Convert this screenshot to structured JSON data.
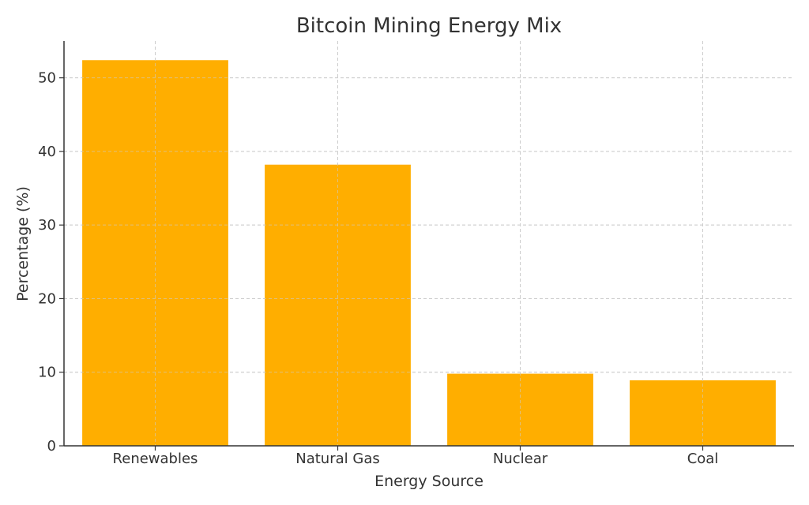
{
  "chart_data": {
    "type": "bar",
    "title": "Bitcoin Mining Energy Mix",
    "xlabel": "Energy Source",
    "ylabel": "Percentage (%)",
    "categories": [
      "Renewables",
      "Natural Gas",
      "Nuclear",
      "Coal"
    ],
    "values": [
      52.4,
      38.2,
      9.8,
      8.9
    ],
    "ylim": [
      0,
      55
    ],
    "yticks": [
      0,
      10,
      20,
      30,
      40,
      50
    ],
    "grid": true,
    "bar_color": "#FFAE00"
  }
}
